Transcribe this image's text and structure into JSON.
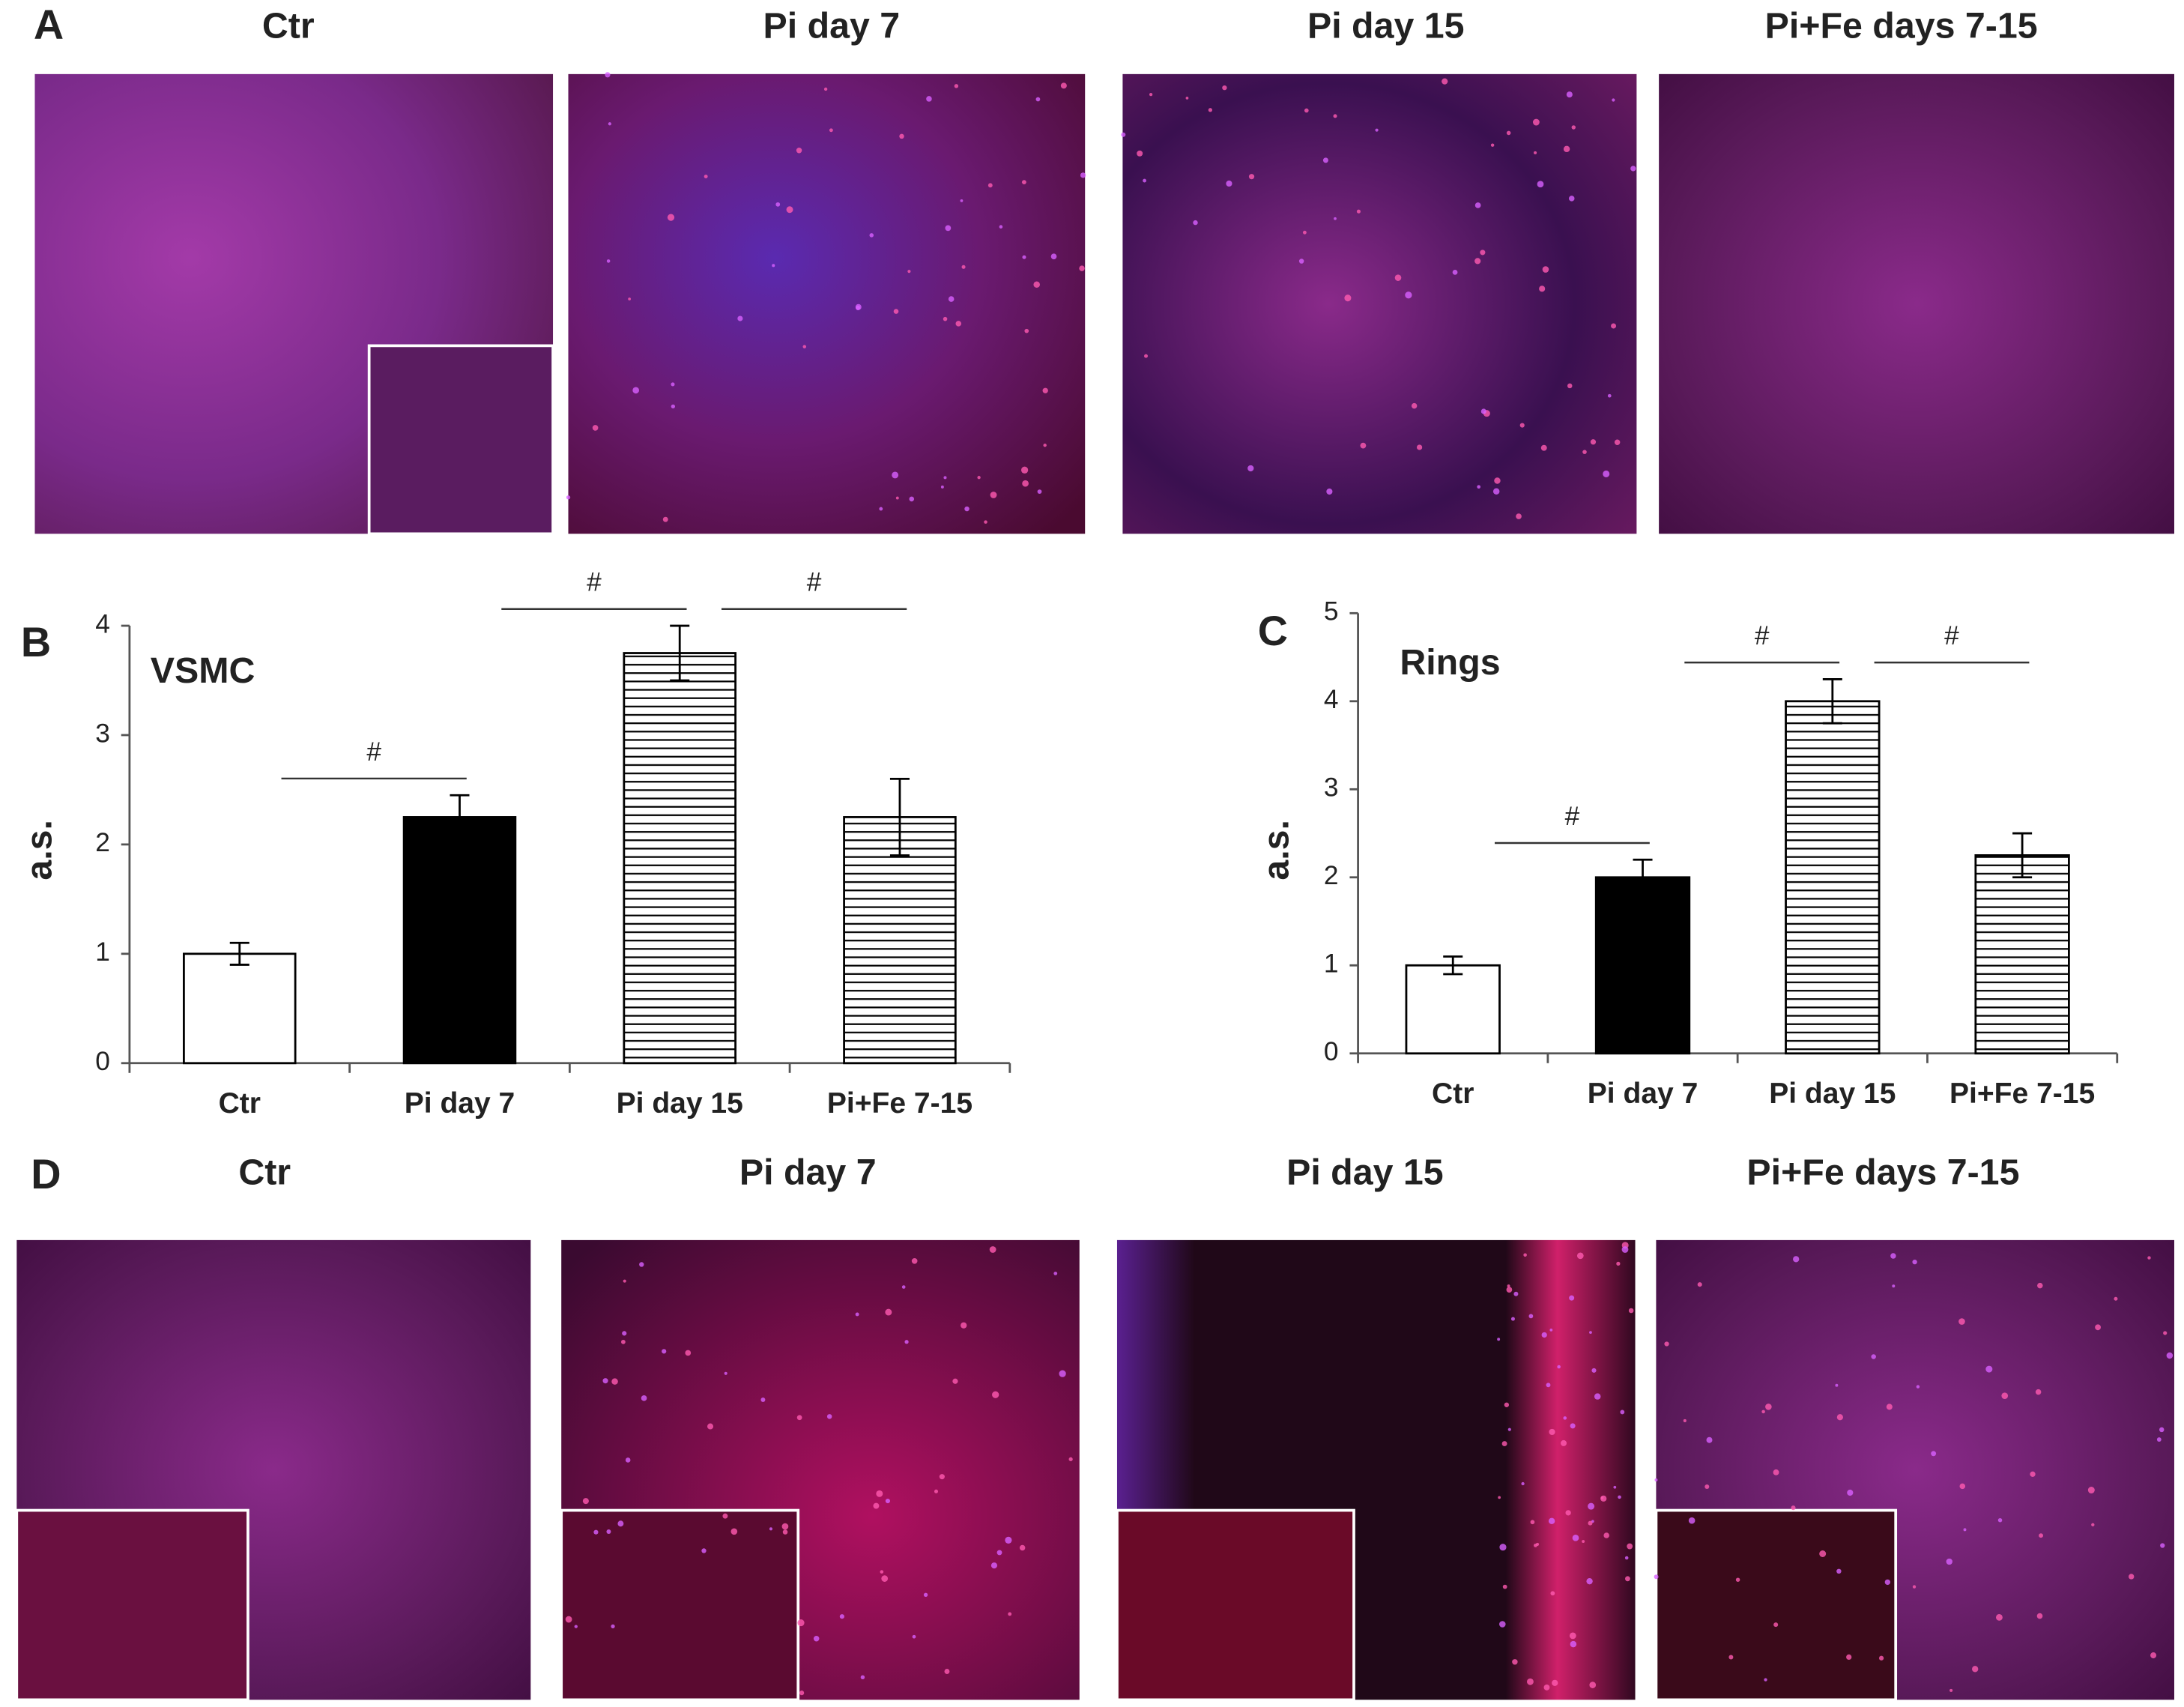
{
  "panels": {
    "A": {
      "label": "A",
      "titles": [
        "Ctr",
        "Pi day 7",
        "Pi day 15",
        "Pi+Fe days 7-15"
      ]
    },
    "D": {
      "label": "D",
      "titles": [
        "Ctr",
        "Pi day 7",
        "Pi day 15",
        "Pi+Fe days 7-15"
      ]
    }
  },
  "chart_data": [
    {
      "type": "bar",
      "panel_label": "B",
      "title": "VSMC",
      "y_label": "a.s.",
      "categories": [
        "Ctr",
        "Pi day 7",
        "Pi day 15",
        "Pi+Fe 7-15"
      ],
      "values": [
        1,
        2.25,
        3.75,
        2.25
      ],
      "errors": [
        0.1,
        0.2,
        0.25,
        0.35
      ],
      "colors": [
        "#ffffff",
        "#000000",
        "#000000",
        "#000000"
      ],
      "patterns": [
        "solid",
        "solid",
        "horizontal-lines",
        "horizontal-lines"
      ],
      "annotations": [
        "#",
        "#",
        "#"
      ],
      "ylim": [
        0,
        4
      ],
      "yticks": [
        0,
        1,
        2,
        3,
        4
      ],
      "grid": false
    },
    {
      "type": "bar",
      "panel_label": "C",
      "title": "Rings",
      "y_label": "a.s.",
      "categories": [
        "Ctr",
        "Pi day 7",
        "Pi day 15",
        "Pi+Fe 7-15"
      ],
      "values": [
        1,
        2,
        4,
        2.25
      ],
      "errors": [
        0.1,
        0.2,
        0.25,
        0.25
      ],
      "colors": [
        "#ffffff",
        "#000000",
        "#000000",
        "#000000"
      ],
      "patterns": [
        "solid",
        "solid",
        "horizontal-lines",
        "horizontal-lines"
      ],
      "annotations": [
        "#",
        "#",
        "#"
      ],
      "ylim": [
        0,
        5
      ],
      "yticks": [
        0,
        1,
        2,
        3,
        4,
        5
      ],
      "grid": false
    }
  ]
}
